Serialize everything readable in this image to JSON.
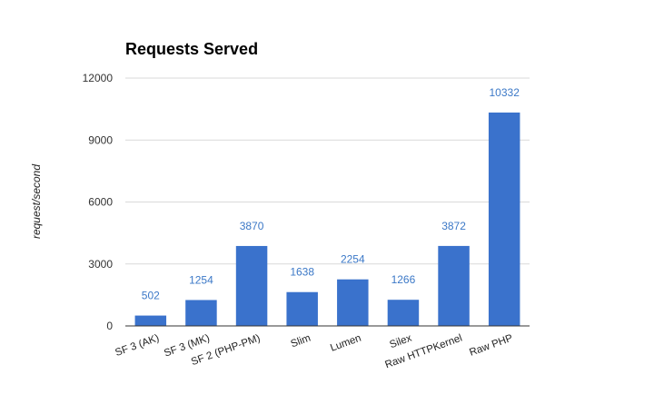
{
  "chart_data": {
    "type": "bar",
    "title": "Requests Served",
    "xlabel": "",
    "ylabel": "request/second",
    "categories": [
      "SF 3 (AK)",
      "SF 3 (MK)",
      "SF 2 (PHP-PM)",
      "Slim",
      "Lumen",
      "Silex",
      "Raw HTTPKernel",
      "Raw PHP"
    ],
    "values": [
      502,
      1254,
      3870,
      1638,
      2254,
      1266,
      3872,
      10332
    ],
    "data_labels": [
      "502",
      "1254",
      "3870",
      "1638",
      "2254",
      "1266",
      "3872",
      "10332"
    ],
    "ylim": [
      0,
      12000
    ],
    "yticks": [
      0,
      3000,
      6000,
      9000,
      12000
    ],
    "ytick_labels": [
      "0",
      "3000",
      "6000",
      "9000",
      "12000"
    ],
    "grid": true,
    "legend": "none",
    "bar_color": "#3a72cc",
    "label_color": "#3b78c7"
  }
}
